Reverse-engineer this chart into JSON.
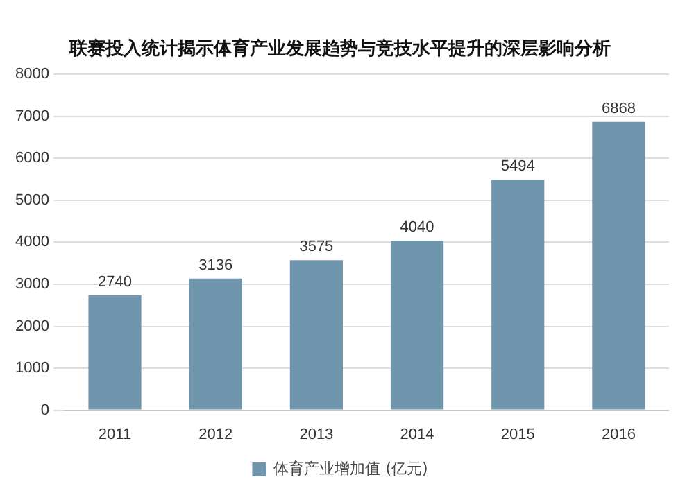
{
  "chart_data": {
    "type": "bar",
    "title": "联赛投入统计揭示体育产业发展趋势与竞技水平提升的深层影响分析",
    "categories": [
      "2011",
      "2012",
      "2013",
      "2014",
      "2015",
      "2016"
    ],
    "series": [
      {
        "name": "体育产业增加值 (亿元)",
        "color": "#7096ae",
        "values": [
          2740,
          3136,
          3575,
          4040,
          5494,
          6868
        ]
      }
    ],
    "ylim": [
      0,
      8000
    ],
    "yticks": [
      0,
      1000,
      2000,
      3000,
      4000,
      5000,
      6000,
      7000,
      8000
    ],
    "grid": "y",
    "legend": "bottom",
    "data_labels": true
  }
}
